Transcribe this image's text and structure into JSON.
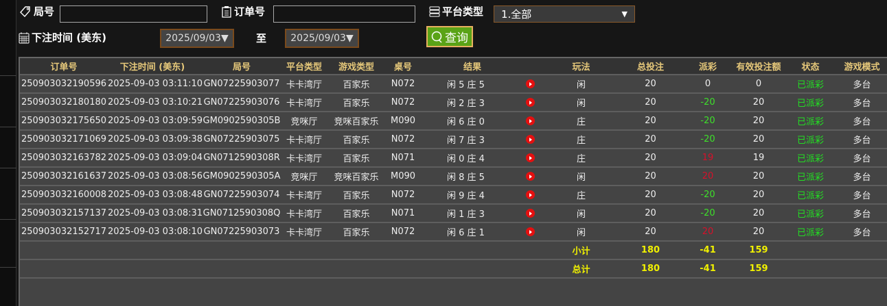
{
  "filters": {
    "round_label": "局号",
    "round_value": "",
    "order_label": "订单号",
    "order_value": "",
    "platform_label": "平台类型",
    "platform_value": "1.全部",
    "time_label": "下注时间 (美东)",
    "date_from": "2025/09/03▼",
    "to_label": "至",
    "date_to": "2025/09/03▼",
    "query_label": "查询"
  },
  "columns": [
    "订单号",
    "下注时间 (美东)",
    "局号",
    "平台类型",
    "游戏类型",
    "桌号",
    "结果",
    "玩法",
    "总投注",
    "派彩",
    "有效投注额",
    "状态",
    "游戏模式"
  ],
  "rows": [
    {
      "order": "250903032190596",
      "time": "2025-09-03 03:11:10",
      "round": "GN07225903077",
      "platform": "卡卡湾厅",
      "game": "百家乐",
      "table": "N072",
      "result": "闲 5 庄 5",
      "play": "闲",
      "bet": "20",
      "payout": "0",
      "payout_type": "zero",
      "valid": "0",
      "status": "已派彩",
      "mode": "多台"
    },
    {
      "order": "250903032180180",
      "time": "2025-09-03 03:10:21",
      "round": "GN07225903076",
      "platform": "卡卡湾厅",
      "game": "百家乐",
      "table": "N072",
      "result": "闲 2 庄 3",
      "play": "闲",
      "bet": "20",
      "payout": "-20",
      "payout_type": "loss",
      "valid": "20",
      "status": "已派彩",
      "mode": "多台"
    },
    {
      "order": "250903032175650",
      "time": "2025-09-03 03:09:59",
      "round": "GM0902590305B",
      "platform": "竞咪厅",
      "game": "竞咪百家乐",
      "table": "M090",
      "result": "闲 6 庄 0",
      "play": "庄",
      "bet": "20",
      "payout": "-20",
      "payout_type": "loss",
      "valid": "20",
      "status": "已派彩",
      "mode": "多台"
    },
    {
      "order": "250903032171069",
      "time": "2025-09-03 03:09:38",
      "round": "GN07225903075",
      "platform": "卡卡湾厅",
      "game": "百家乐",
      "table": "N072",
      "result": "闲 7 庄 3",
      "play": "庄",
      "bet": "20",
      "payout": "-20",
      "payout_type": "loss",
      "valid": "20",
      "status": "已派彩",
      "mode": "多台"
    },
    {
      "order": "250903032163782",
      "time": "2025-09-03 03:09:04",
      "round": "GN0712590308R",
      "platform": "卡卡湾厅",
      "game": "百家乐",
      "table": "N071",
      "result": "闲 0 庄 4",
      "play": "庄",
      "bet": "20",
      "payout": "19",
      "payout_type": "win",
      "valid": "19",
      "status": "已派彩",
      "mode": "多台"
    },
    {
      "order": "250903032161637",
      "time": "2025-09-03 03:08:56",
      "round": "GM0902590305A",
      "platform": "竞咪厅",
      "game": "竞咪百家乐",
      "table": "M090",
      "result": "闲 8 庄 5",
      "play": "闲",
      "bet": "20",
      "payout": "20",
      "payout_type": "win",
      "valid": "20",
      "status": "已派彩",
      "mode": "多台"
    },
    {
      "order": "250903032160008",
      "time": "2025-09-03 03:08:48",
      "round": "GN07225903074",
      "platform": "卡卡湾厅",
      "game": "百家乐",
      "table": "N072",
      "result": "闲 9 庄 4",
      "play": "庄",
      "bet": "20",
      "payout": "-20",
      "payout_type": "loss",
      "valid": "20",
      "status": "已派彩",
      "mode": "多台"
    },
    {
      "order": "250903032157137",
      "time": "2025-09-03 03:08:31",
      "round": "GN0712590308Q",
      "platform": "卡卡湾厅",
      "game": "百家乐",
      "table": "N071",
      "result": "闲 1 庄 3",
      "play": "闲",
      "bet": "20",
      "payout": "-20",
      "payout_type": "loss",
      "valid": "20",
      "status": "已派彩",
      "mode": "多台"
    },
    {
      "order": "250903032152717",
      "time": "2025-09-03 03:08:10",
      "round": "GN07225903073",
      "platform": "卡卡湾厅",
      "game": "百家乐",
      "table": "N072",
      "result": "闲 6 庄 1",
      "play": "闲",
      "bet": "20",
      "payout": "20",
      "payout_type": "win",
      "valid": "20",
      "status": "已派彩",
      "mode": "多台"
    }
  ],
  "subtotal": {
    "label": "小计",
    "bet": "180",
    "payout": "-41",
    "valid": "159"
  },
  "total": {
    "label": "总计",
    "bet": "180",
    "payout": "-41",
    "valid": "159"
  },
  "colors": {
    "loss": "#3ee02a",
    "win": "#d8102a",
    "status": "#22e022",
    "summary": "#f0f000",
    "header": "#e6c87a",
    "query_button": "#5aa317"
  }
}
